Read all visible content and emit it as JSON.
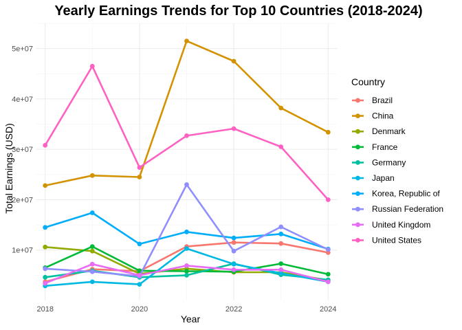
{
  "chart_data": {
    "type": "line",
    "title": "Yearly Earnings Trends for Top 10 Countries (2018-2024)",
    "xlabel": "Year",
    "ylabel": "Total Earnings (USD)",
    "x": [
      2018,
      2019,
      2020,
      2021,
      2022,
      2023,
      2024
    ],
    "xticks": [
      2018,
      2020,
      2022,
      2024
    ],
    "xtick_labels": [
      "2018",
      "2020",
      "2022",
      "2024"
    ],
    "xlim": [
      2017.8,
      2024.2
    ],
    "ylim": [
      0,
      55000000
    ],
    "yticks": [
      10000000,
      20000000,
      30000000,
      40000000,
      50000000
    ],
    "ytick_labels": [
      "1e+07",
      "2e+07",
      "3e+07",
      "4e+07",
      "5e+07"
    ],
    "grid": true,
    "legend": {
      "title": "Country",
      "position": "right"
    },
    "series": [
      {
        "name": "Brazil",
        "color": "#F8766D",
        "values": [
          3700000,
          6200000,
          5800000,
          10700000,
          11500000,
          11300000,
          9500000
        ]
      },
      {
        "name": "China",
        "color": "#D39200",
        "values": [
          22800000,
          24800000,
          24500000,
          51500000,
          47500000,
          38200000,
          33400000
        ]
      },
      {
        "name": "Denmark",
        "color": "#93AA00",
        "values": [
          10600000,
          9800000,
          5300000,
          6300000,
          5600000,
          5600000,
          4000000
        ]
      },
      {
        "name": "France",
        "color": "#00BA38",
        "values": [
          6500000,
          10700000,
          5900000,
          5800000,
          5700000,
          7300000,
          5200000
        ]
      },
      {
        "name": "Germany",
        "color": "#00C19F",
        "values": [
          4600000,
          5900000,
          4600000,
          5000000,
          7300000,
          5100000,
          4100000
        ]
      },
      {
        "name": "Japan",
        "color": "#00B9E3",
        "values": [
          2900000,
          3700000,
          3200000,
          10300000,
          7200000,
          5400000,
          3700000
        ]
      },
      {
        "name": "Korea, Republic of",
        "color": "#00ADFA",
        "values": [
          14500000,
          17400000,
          11200000,
          13600000,
          12400000,
          13200000,
          10200000
        ]
      },
      {
        "name": "Russian Federation",
        "color": "#8F8EFE",
        "values": [
          6300000,
          5700000,
          4800000,
          23000000,
          9800000,
          14600000,
          10100000
        ]
      },
      {
        "name": "United Kingdom",
        "color": "#E76BF3",
        "values": [
          3400000,
          7200000,
          5000000,
          6900000,
          6100000,
          6100000,
          3700000
        ]
      },
      {
        "name": "United States",
        "color": "#FF61C3",
        "values": [
          30800000,
          46500000,
          26400000,
          32700000,
          34100000,
          30500000,
          20000000
        ]
      }
    ]
  }
}
